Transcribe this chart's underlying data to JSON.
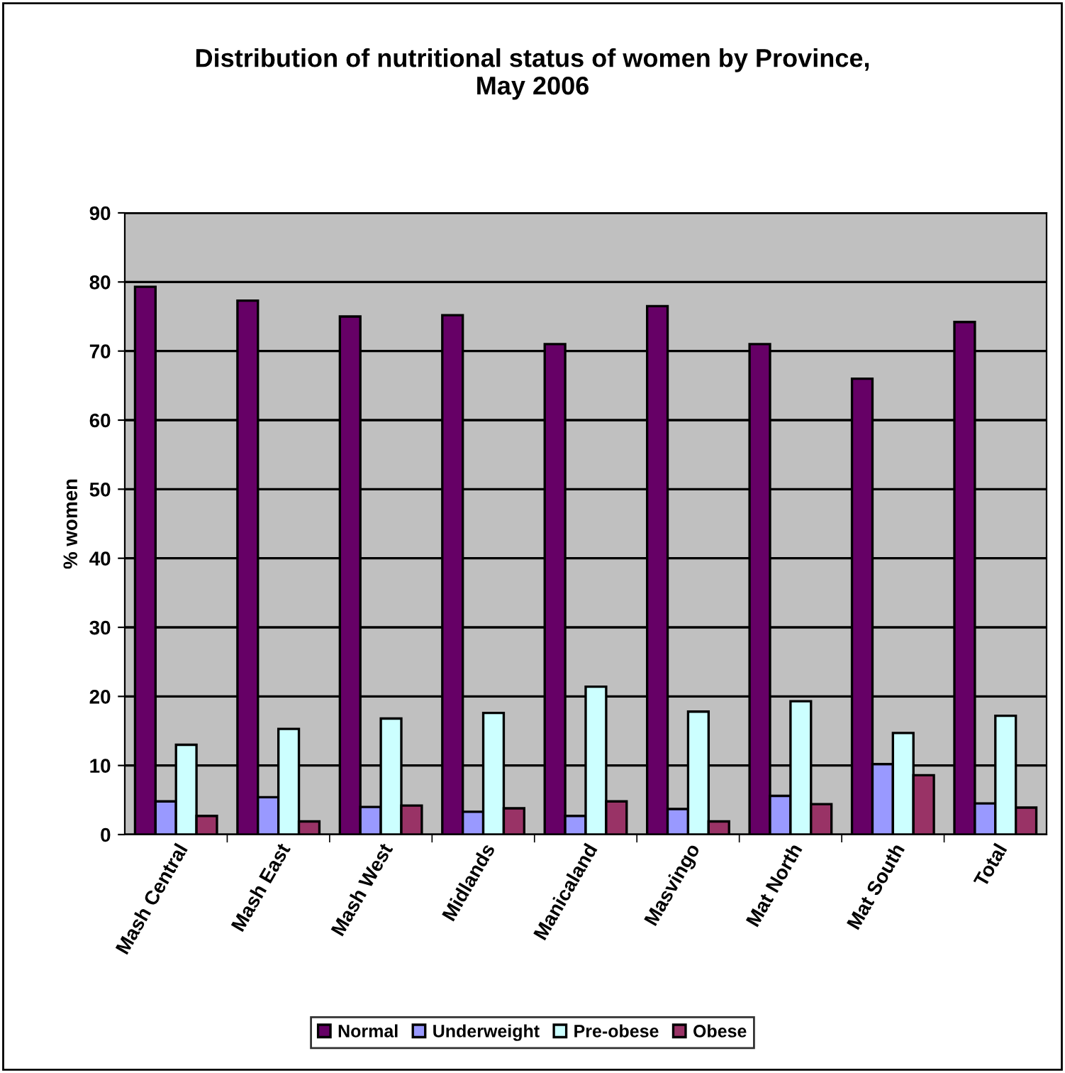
{
  "chart_data": {
    "type": "bar",
    "title": "Distribution of nutritional status of women by Province,\nMay 2006",
    "ylabel": "% women",
    "categories": [
      "Mash Central",
      "Mash East",
      "Mash West",
      "Midlands",
      "Manicaland",
      "Masvingo",
      "Mat North",
      "Mat South",
      "Total"
    ],
    "series": [
      {
        "name": "Normal",
        "color": "#660066",
        "values": [
          79.3,
          77.3,
          75.0,
          75.2,
          71.0,
          76.5,
          71.0,
          66.0,
          74.2
        ]
      },
      {
        "name": "Underweight",
        "color": "#9999ff",
        "values": [
          4.8,
          5.4,
          4.0,
          3.3,
          2.7,
          3.7,
          5.6,
          10.2,
          4.5
        ]
      },
      {
        "name": "Pre-obese",
        "color": "#ccffff",
        "values": [
          13.0,
          15.3,
          16.8,
          17.6,
          21.4,
          17.8,
          19.3,
          14.7,
          17.2
        ]
      },
      {
        "name": "Obese",
        "color": "#993366",
        "values": [
          2.7,
          1.9,
          4.2,
          3.8,
          4.8,
          1.9,
          4.4,
          8.6,
          3.9
        ]
      }
    ],
    "ylim": [
      0,
      90
    ],
    "yticks": [
      0,
      10,
      20,
      30,
      40,
      50,
      60,
      70,
      80,
      90
    ],
    "grid": "y",
    "legend": "bottom"
  }
}
